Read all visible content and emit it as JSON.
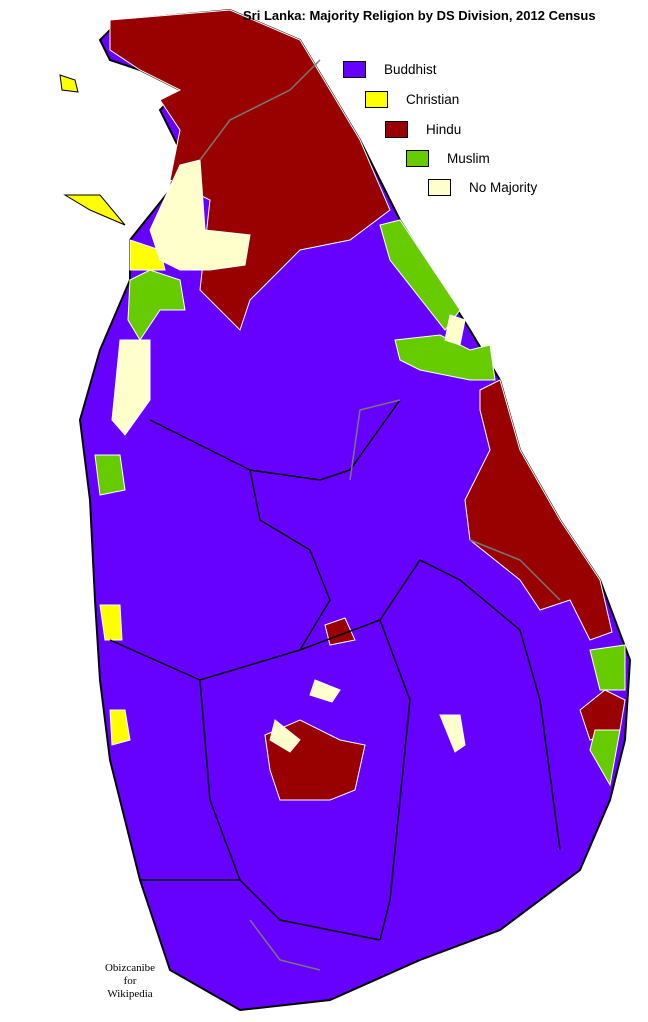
{
  "title": "Sri Lanka: Majority Religion by DS Division, 2012 Census",
  "legend": [
    {
      "label": "Buddhist",
      "color": "#6600ff"
    },
    {
      "label": "Christian",
      "color": "#ffff00"
    },
    {
      "label": "Hindu",
      "color": "#990000"
    },
    {
      "label": "Muslim",
      "color": "#66cc00"
    },
    {
      "label": "No Majority",
      "color": "#ffffcc"
    }
  ],
  "credit": {
    "line1": "Obizcanibe",
    "line2": "for",
    "line3": "Wikipedia"
  }
}
